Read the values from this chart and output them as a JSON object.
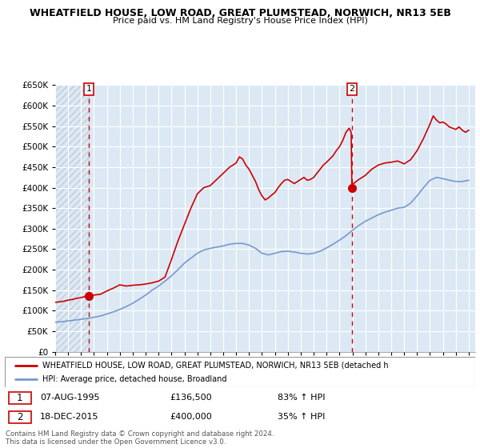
{
  "title": "WHEATFIELD HOUSE, LOW ROAD, GREAT PLUMSTEAD, NORWICH, NR13 5EB",
  "subtitle": "Price paid vs. HM Land Registry's House Price Index (HPI)",
  "ylim": [
    0,
    650000
  ],
  "yticks": [
    0,
    50000,
    100000,
    150000,
    200000,
    250000,
    300000,
    350000,
    400000,
    450000,
    500000,
    550000,
    600000,
    650000
  ],
  "xlim_start": 1993.0,
  "xlim_end": 2025.5,
  "sale1_date": 1995.6,
  "sale1_price": 136500,
  "sale2_date": 2015.96,
  "sale2_price": 400000,
  "legend_line1": "WHEATFIELD HOUSE, LOW ROAD, GREAT PLUMSTEAD, NORWICH, NR13 5EB (detached h",
  "legend_line2": "HPI: Average price, detached house, Broadland",
  "table_row1": [
    "1",
    "07-AUG-1995",
    "£136,500",
    "83% ↑ HPI"
  ],
  "table_row2": [
    "2",
    "18-DEC-2015",
    "£400,000",
    "35% ↑ HPI"
  ],
  "footer": "Contains HM Land Registry data © Crown copyright and database right 2024.\nThis data is licensed under the Open Government Licence v3.0.",
  "house_color": "#cc0000",
  "hpi_color": "#7799cc",
  "vline_color": "#cc0000",
  "bg_color": "#dce9f5",
  "hatch_color": "#c0ccd8",
  "grid_color": "#ffffff"
}
